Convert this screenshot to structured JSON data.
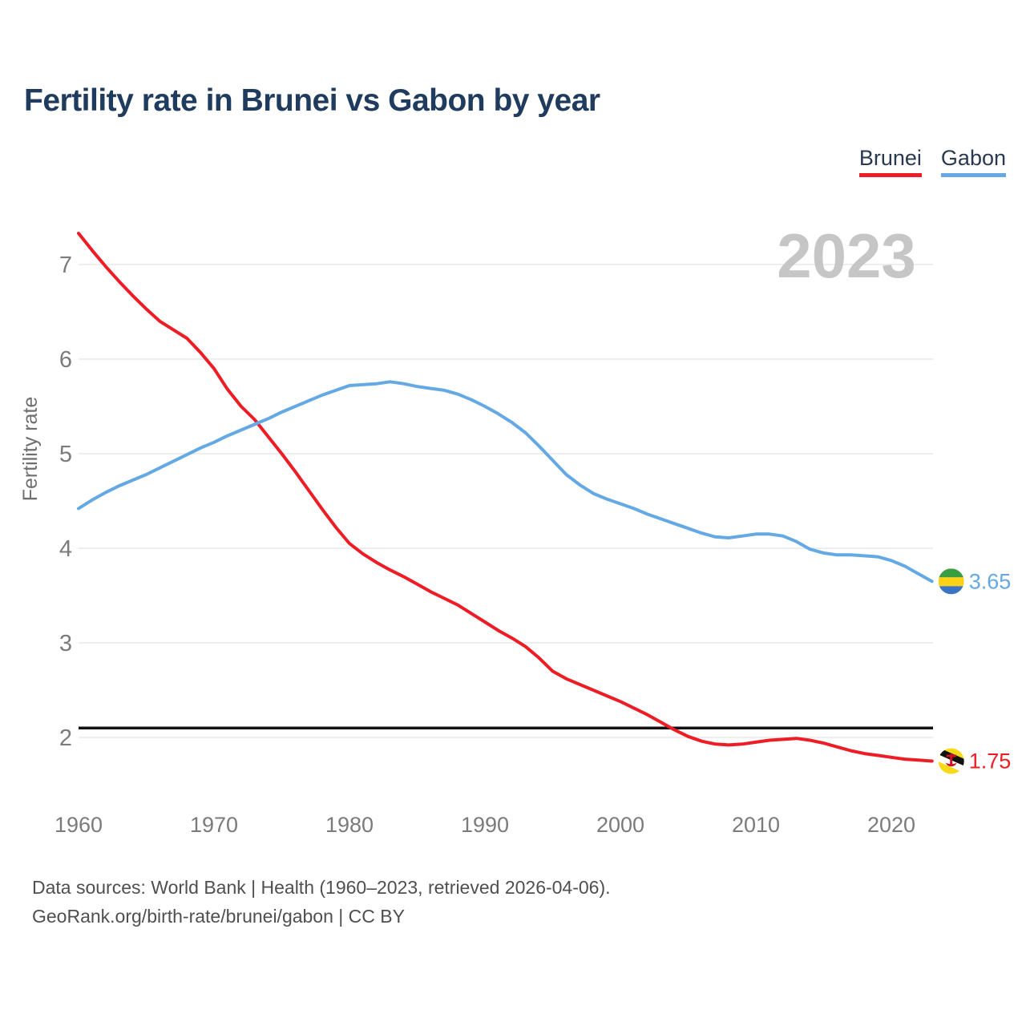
{
  "title": "Fertility rate in Brunei vs Gabon by year",
  "legend": [
    {
      "label": "Brunei",
      "color": "#ee1c25"
    },
    {
      "label": "Gabon",
      "color": "#64a9e4"
    }
  ],
  "watermark": "2023",
  "footer": {
    "line1": "Data sources: World Bank | Health (1960–2023, retrieved 2026-04-06).",
    "line2": "GeoRank.org/birth-rate/brunei/gabon | CC BY"
  },
  "colors": {
    "title": "#1f3b5e",
    "grid": "#e8e8e8",
    "tick_label": "#7b7b7b",
    "watermark": "#c6c6c6",
    "reference_line": "#111111",
    "footer_text": "#4f4f4f"
  },
  "chart_data": {
    "type": "line",
    "title": "Fertility rate in Brunei vs Gabon by year",
    "xlabel": "",
    "ylabel": "Fertility rate",
    "xlim": [
      1960,
      2023
    ],
    "ylim": [
      1.6,
      7.45
    ],
    "x_ticks": [
      1960,
      1970,
      1980,
      1990,
      2000,
      2010,
      2020
    ],
    "y_ticks": [
      2,
      3,
      4,
      5,
      6,
      7
    ],
    "grid": true,
    "legend_position": "top-right",
    "reference_line": 2.1,
    "watermark": "2023",
    "x": [
      1960,
      1961,
      1962,
      1963,
      1964,
      1965,
      1966,
      1967,
      1968,
      1969,
      1970,
      1971,
      1972,
      1973,
      1974,
      1975,
      1976,
      1977,
      1978,
      1979,
      1980,
      1981,
      1982,
      1983,
      1984,
      1985,
      1986,
      1987,
      1988,
      1989,
      1990,
      1991,
      1992,
      1993,
      1994,
      1995,
      1996,
      1997,
      1998,
      1999,
      2000,
      2001,
      2002,
      2003,
      2004,
      2005,
      2006,
      2007,
      2008,
      2009,
      2010,
      2011,
      2012,
      2013,
      2014,
      2015,
      2016,
      2017,
      2018,
      2019,
      2020,
      2021,
      2022,
      2023
    ],
    "series": [
      {
        "name": "Brunei",
        "color": "#ee1c25",
        "end_label": "1.75",
        "flag": "brunei",
        "values": [
          7.33,
          7.15,
          6.98,
          6.82,
          6.67,
          6.53,
          6.4,
          6.31,
          6.22,
          6.07,
          5.9,
          5.68,
          5.5,
          5.36,
          5.18,
          5.0,
          4.81,
          4.61,
          4.41,
          4.22,
          4.05,
          3.94,
          3.85,
          3.77,
          3.7,
          3.62,
          3.54,
          3.47,
          3.4,
          3.31,
          3.22,
          3.13,
          3.05,
          2.96,
          2.84,
          2.7,
          2.62,
          2.56,
          2.5,
          2.44,
          2.38,
          2.31,
          2.24,
          2.16,
          2.08,
          2.01,
          1.96,
          1.93,
          1.92,
          1.93,
          1.95,
          1.97,
          1.98,
          1.99,
          1.97,
          1.94,
          1.9,
          1.86,
          1.83,
          1.81,
          1.79,
          1.77,
          1.76,
          1.75
        ]
      },
      {
        "name": "Gabon",
        "color": "#64a9e4",
        "end_label": "3.65",
        "flag": "gabon",
        "values": [
          4.42,
          4.51,
          4.59,
          4.66,
          4.72,
          4.78,
          4.85,
          4.92,
          4.99,
          5.06,
          5.12,
          5.19,
          5.25,
          5.31,
          5.37,
          5.44,
          5.5,
          5.56,
          5.62,
          5.67,
          5.72,
          5.73,
          5.74,
          5.76,
          5.74,
          5.71,
          5.69,
          5.67,
          5.63,
          5.57,
          5.5,
          5.42,
          5.33,
          5.22,
          5.08,
          4.93,
          4.78,
          4.67,
          4.58,
          4.52,
          4.47,
          4.42,
          4.36,
          4.31,
          4.26,
          4.21,
          4.16,
          4.12,
          4.11,
          4.13,
          4.15,
          4.15,
          4.13,
          4.07,
          3.99,
          3.95,
          3.93,
          3.93,
          3.92,
          3.91,
          3.87,
          3.81,
          3.73,
          3.65
        ]
      }
    ]
  }
}
